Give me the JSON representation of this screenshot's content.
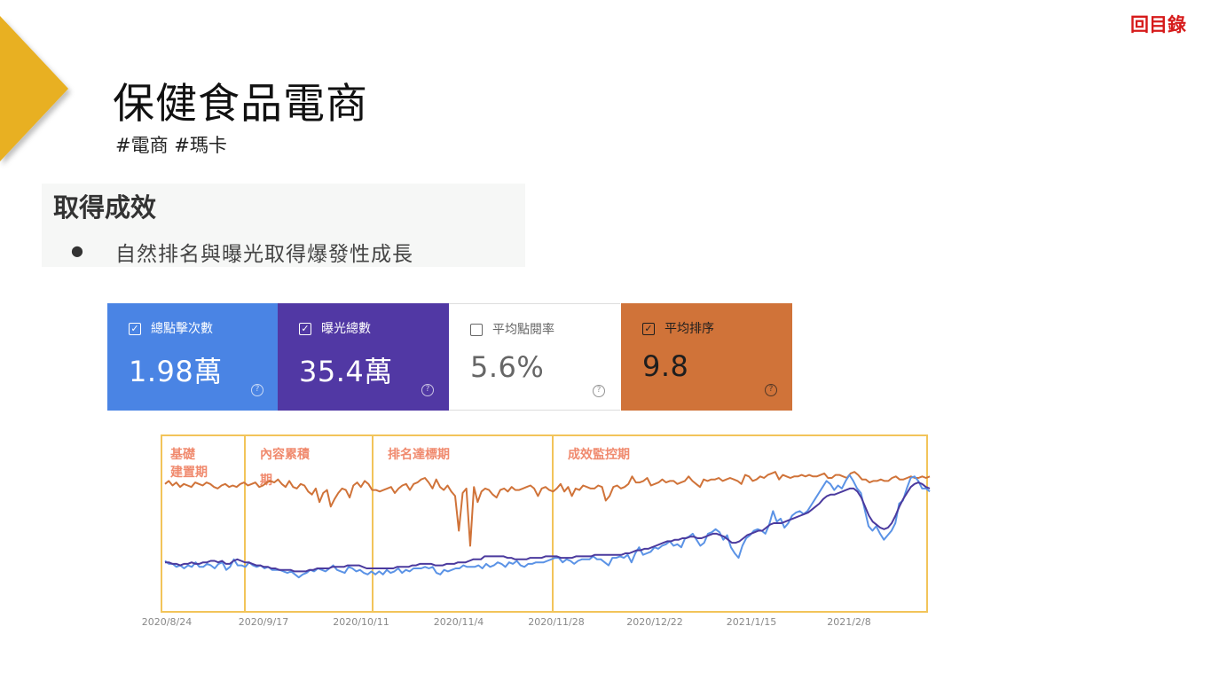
{
  "nav": {
    "toc_label": "回目錄"
  },
  "header": {
    "title": "保健食品電商",
    "tags": "#電商 #瑪卡"
  },
  "results": {
    "heading": "取得成效",
    "bullet": "●",
    "item": "自然排名與曝光取得爆發性成長"
  },
  "metrics": [
    {
      "label": "總點擊次數",
      "value": "1.98萬",
      "checked": true,
      "color": "#4a84e4"
    },
    {
      "label": "曝光總數",
      "value": "35.4萬",
      "checked": true,
      "color": "#5138a4"
    },
    {
      "label": "平均點閱率",
      "value": "5.6%",
      "checked": false,
      "color": "#ffffff"
    },
    {
      "label": "平均排序",
      "value": "9.8",
      "checked": true,
      "color": "#d07339"
    }
  ],
  "chart_data": {
    "type": "line",
    "x_ticks": [
      "2020/8/24",
      "2020/9/17",
      "2020/10/11",
      "2020/11/4",
      "2020/11/28",
      "2020/12/22",
      "2021/1/15",
      "2021/2/8"
    ],
    "phases": [
      {
        "name": [
          "基礎",
          "建置期"
        ]
      },
      {
        "name": [
          "內容累積",
          "期"
        ]
      },
      {
        "name": [
          "排名達標期"
        ]
      },
      {
        "name": [
          "成效監控期"
        ]
      }
    ],
    "phase_border_color": "#f2c45a",
    "series": [
      {
        "color": "#d07339",
        "values": [
          0.76,
          0.78,
          0.75,
          0.77,
          0.74,
          0.76,
          0.75,
          0.74,
          0.77,
          0.76,
          0.75,
          0.77,
          0.76,
          0.74,
          0.73,
          0.75,
          0.76,
          0.74,
          0.75,
          0.74,
          0.76,
          0.77,
          0.75,
          0.76,
          0.77,
          0.74,
          0.75,
          0.77,
          0.78,
          0.77,
          0.79,
          0.76,
          0.74,
          0.78,
          0.74,
          0.73,
          0.76,
          0.75,
          0.71,
          0.69,
          0.73,
          0.64,
          0.7,
          0.72,
          0.61,
          0.66,
          0.7,
          0.73,
          0.72,
          0.67,
          0.75,
          0.77,
          0.74,
          0.78,
          0.76,
          0.72,
          0.72,
          0.71,
          0.72,
          0.73,
          0.74,
          0.7,
          0.73,
          0.75,
          0.76,
          0.72,
          0.76,
          0.77,
          0.79,
          0.8,
          0.77,
          0.73,
          0.79,
          0.74,
          0.72,
          0.75,
          0.71,
          0.68,
          0.45,
          0.7,
          0.73,
          0.35,
          0.74,
          0.64,
          0.71,
          0.73,
          0.72,
          0.69,
          0.67,
          0.72,
          0.73,
          0.71,
          0.74,
          0.72,
          0.72,
          0.73,
          0.74,
          0.75,
          0.73,
          0.68,
          0.73,
          0.74,
          0.72,
          0.71,
          0.73,
          0.76,
          0.71,
          0.74,
          0.68,
          0.73,
          0.72,
          0.75,
          0.74,
          0.73,
          0.73,
          0.75,
          0.74,
          0.65,
          0.68,
          0.74,
          0.75,
          0.73,
          0.74,
          0.76,
          0.81,
          0.77,
          0.77,
          0.78,
          0.8,
          0.75,
          0.76,
          0.77,
          0.79,
          0.77,
          0.78,
          0.78,
          0.76,
          0.77,
          0.78,
          0.81,
          0.78,
          0.76,
          0.74,
          0.79,
          0.78,
          0.79,
          0.79,
          0.8,
          0.78,
          0.79,
          0.8,
          0.79,
          0.78,
          0.76,
          0.82,
          0.81,
          0.78,
          0.79,
          0.81,
          0.8,
          0.82,
          0.83,
          0.84,
          0.79,
          0.82,
          0.81,
          0.8,
          0.81,
          0.81,
          0.82,
          0.81,
          0.82,
          0.81,
          0.81,
          0.82,
          0.83,
          0.8,
          0.8,
          0.82,
          0.82,
          0.81,
          0.8,
          0.83,
          0.84,
          0.82,
          0.79,
          0.79,
          0.77,
          0.78,
          0.78,
          0.79,
          0.78,
          0.78,
          0.8,
          0.81,
          0.79,
          0.79,
          0.8,
          0.81,
          0.8,
          0.8,
          0.81,
          0.8,
          0.81
        ]
      },
      {
        "color": "#5b93e6",
        "values": [
          0.25,
          0.23,
          0.23,
          0.21,
          0.22,
          0.2,
          0.22,
          0.21,
          0.24,
          0.21,
          0.21,
          0.23,
          0.22,
          0.2,
          0.23,
          0.24,
          0.19,
          0.21,
          0.26,
          0.22,
          0.22,
          0.21,
          0.24,
          0.22,
          0.21,
          0.22,
          0.2,
          0.21,
          0.19,
          0.19,
          0.19,
          0.18,
          0.17,
          0.18,
          0.16,
          0.14,
          0.16,
          0.17,
          0.19,
          0.18,
          0.2,
          0.19,
          0.18,
          0.2,
          0.22,
          0.19,
          0.18,
          0.17,
          0.21,
          0.2,
          0.18,
          0.19,
          0.17,
          0.16,
          0.18,
          0.16,
          0.18,
          0.16,
          0.19,
          0.17,
          0.18,
          0.2,
          0.17,
          0.19,
          0.18,
          0.2,
          0.2,
          0.2,
          0.21,
          0.2,
          0.21,
          0.17,
          0.16,
          0.19,
          0.18,
          0.19,
          0.2,
          0.2,
          0.22,
          0.21,
          0.21,
          0.21,
          0.22,
          0.2,
          0.23,
          0.21,
          0.22,
          0.24,
          0.23,
          0.21,
          0.24,
          0.23,
          0.25,
          0.22,
          0.21,
          0.23,
          0.23,
          0.24,
          0.24,
          0.24,
          0.25,
          0.26,
          0.27,
          0.27,
          0.24,
          0.26,
          0.25,
          0.23,
          0.25,
          0.26,
          0.26,
          0.26,
          0.28,
          0.26,
          0.26,
          0.24,
          0.22,
          0.27,
          0.27,
          0.28,
          0.27,
          0.29,
          0.24,
          0.3,
          0.34,
          0.29,
          0.3,
          0.31,
          0.34,
          0.33,
          0.35,
          0.36,
          0.38,
          0.35,
          0.36,
          0.34,
          0.4,
          0.41,
          0.43,
          0.39,
          0.35,
          0.37,
          0.43,
          0.44,
          0.46,
          0.44,
          0.39,
          0.42,
          0.34,
          0.3,
          0.27,
          0.35,
          0.4,
          0.42,
          0.45,
          0.46,
          0.45,
          0.43,
          0.49,
          0.58,
          0.51,
          0.53,
          0.47,
          0.5,
          0.55,
          0.57,
          0.58,
          0.56,
          0.58,
          0.62,
          0.66,
          0.7,
          0.74,
          0.78,
          0.76,
          0.72,
          0.75,
          0.73,
          0.78,
          0.82,
          0.78,
          0.73,
          0.7,
          0.59,
          0.48,
          0.45,
          0.48,
          0.43,
          0.39,
          0.42,
          0.45,
          0.5,
          0.63,
          0.65,
          0.73,
          0.8,
          0.81,
          0.78,
          0.73,
          0.73,
          0.71
        ]
      },
      {
        "color": "#4b3a9e",
        "values": [
          0.24,
          0.24,
          0.23,
          0.23,
          0.22,
          0.23,
          0.23,
          0.24,
          0.23,
          0.23,
          0.24,
          0.24,
          0.25,
          0.25,
          0.24,
          0.25,
          0.23,
          0.23,
          0.25,
          0.26,
          0.25,
          0.24,
          0.24,
          0.23,
          0.22,
          0.22,
          0.21,
          0.21,
          0.2,
          0.2,
          0.19,
          0.19,
          0.19,
          0.19,
          0.18,
          0.18,
          0.18,
          0.18,
          0.19,
          0.19,
          0.2,
          0.2,
          0.2,
          0.2,
          0.21,
          0.21,
          0.21,
          0.21,
          0.22,
          0.22,
          0.22,
          0.22,
          0.21,
          0.2,
          0.2,
          0.2,
          0.2,
          0.2,
          0.2,
          0.2,
          0.2,
          0.21,
          0.21,
          0.21,
          0.21,
          0.22,
          0.22,
          0.23,
          0.23,
          0.23,
          0.23,
          0.22,
          0.22,
          0.22,
          0.23,
          0.23,
          0.23,
          0.24,
          0.24,
          0.24,
          0.25,
          0.26,
          0.26,
          0.26,
          0.28,
          0.28,
          0.28,
          0.28,
          0.28,
          0.28,
          0.27,
          0.27,
          0.26,
          0.26,
          0.26,
          0.26,
          0.27,
          0.27,
          0.27,
          0.27,
          0.28,
          0.28,
          0.28,
          0.28,
          0.27,
          0.27,
          0.27,
          0.27,
          0.28,
          0.28,
          0.28,
          0.28,
          0.28,
          0.29,
          0.29,
          0.29,
          0.29,
          0.29,
          0.29,
          0.29,
          0.29,
          0.3,
          0.3,
          0.31,
          0.32,
          0.32,
          0.33,
          0.33,
          0.34,
          0.35,
          0.36,
          0.37,
          0.38,
          0.38,
          0.39,
          0.39,
          0.4,
          0.4,
          0.41,
          0.41,
          0.4,
          0.4,
          0.41,
          0.42,
          0.43,
          0.43,
          0.42,
          0.41,
          0.39,
          0.37,
          0.37,
          0.38,
          0.4,
          0.42,
          0.43,
          0.44,
          0.45,
          0.45,
          0.47,
          0.49,
          0.5,
          0.5,
          0.5,
          0.51,
          0.52,
          0.53,
          0.54,
          0.55,
          0.56,
          0.57,
          0.59,
          0.61,
          0.63,
          0.66,
          0.68,
          0.69,
          0.69,
          0.7,
          0.71,
          0.72,
          0.73,
          0.73,
          0.71,
          0.67,
          0.61,
          0.55,
          0.51,
          0.49,
          0.47,
          0.46,
          0.47,
          0.5,
          0.55,
          0.61,
          0.66,
          0.7,
          0.74,
          0.76,
          0.77,
          0.76,
          0.74,
          0.73
        ]
      }
    ]
  }
}
